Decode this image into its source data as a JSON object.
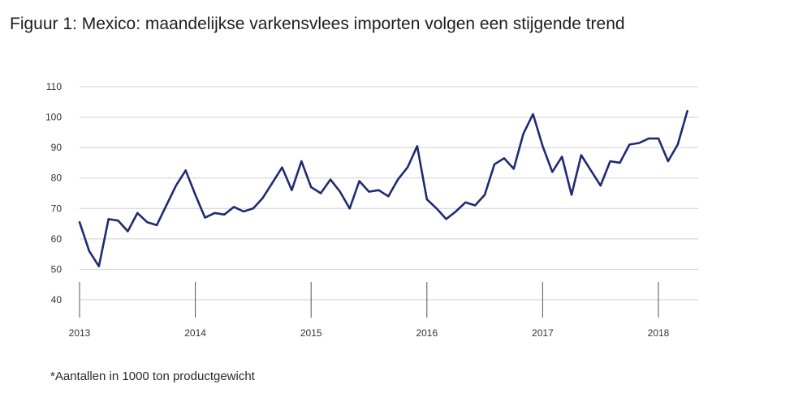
{
  "title": "Figuur 1: Mexico: maandelijkse varkensvlees importen volgen een stijgende trend",
  "footnote": "*Aantallen in 1000 ton productgewicht",
  "chart_data": {
    "type": "line",
    "title": "Figuur 1: Mexico: maandelijkse varkensvlees importen volgen een stijgende trend",
    "xlabel": "",
    "ylabel": "",
    "ylim": [
      40,
      110
    ],
    "yticks": [
      40,
      50,
      60,
      70,
      80,
      90,
      100,
      110
    ],
    "x_tick_labels": [
      "2013",
      "2014",
      "2015",
      "2016",
      "2017",
      "2018"
    ],
    "grid": "horizontal",
    "line_color": "#1f2a72",
    "series": [
      {
        "x": [
          "2013-01",
          "2013-02",
          "2013-03",
          "2013-04",
          "2013-05",
          "2013-06",
          "2013-07",
          "2013-08",
          "2013-09",
          "2013-10",
          "2013-11",
          "2013-12",
          "2014-01",
          "2014-02",
          "2014-03",
          "2014-04",
          "2014-05",
          "2014-06",
          "2014-07",
          "2014-08",
          "2014-09",
          "2014-10",
          "2014-11",
          "2014-12",
          "2015-01",
          "2015-02",
          "2015-03",
          "2015-04",
          "2015-05",
          "2015-06",
          "2015-07",
          "2015-08",
          "2015-09",
          "2015-10",
          "2015-11",
          "2015-12",
          "2016-01",
          "2016-02",
          "2016-03",
          "2016-04",
          "2016-05",
          "2016-06",
          "2016-07",
          "2016-08",
          "2016-09",
          "2016-10",
          "2016-11",
          "2016-12",
          "2017-01",
          "2017-02",
          "2017-03",
          "2017-04",
          "2017-05",
          "2017-06",
          "2017-07",
          "2017-08",
          "2017-09",
          "2017-10",
          "2017-11",
          "2017-12",
          "2018-01",
          "2018-02",
          "2018-03",
          "2018-04"
        ],
        "values": [
          65.5,
          56,
          51,
          66.5,
          66,
          62.5,
          68.5,
          65.5,
          64.5,
          71,
          77.5,
          82.5,
          74.5,
          67,
          68.5,
          68,
          70.5,
          69,
          70,
          73.5,
          78.5,
          83.5,
          76,
          85.5,
          77,
          75,
          79.5,
          75.5,
          70,
          79,
          75.5,
          76,
          74,
          79.5,
          83.5,
          90.5,
          73,
          70,
          66.5,
          69,
          72,
          71,
          74.5,
          84.5,
          86.5,
          83,
          94.5,
          101,
          90.5,
          82,
          87,
          74.5,
          87.5,
          82.5,
          77.5,
          85.5,
          85,
          91,
          91.5,
          93,
          93,
          85.5,
          91,
          102
        ]
      }
    ]
  }
}
